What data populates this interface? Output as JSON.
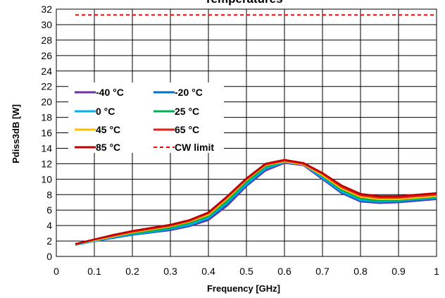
{
  "chart_data": {
    "type": "line",
    "title": "Temperatures",
    "xlabel": "Frequency [GHz]",
    "ylabel": "Pdiss3dB [W]",
    "xlim": [
      0,
      1
    ],
    "ylim": [
      0,
      32
    ],
    "x_ticks": [
      "0",
      "0.1",
      "0.2",
      "0.3",
      "0.4",
      "0.5",
      "0.6",
      "0.7",
      "0.8",
      "0.9",
      "1"
    ],
    "y_ticks": [
      "0",
      "2",
      "4",
      "6",
      "8",
      "10",
      "12",
      "14",
      "16",
      "18",
      "20",
      "22",
      "24",
      "26",
      "28",
      "30",
      "32"
    ],
    "grid": true,
    "legend_position": "upper-left",
    "x": [
      0.05,
      0.1,
      0.15,
      0.2,
      0.25,
      0.3,
      0.35,
      0.4,
      0.45,
      0.5,
      0.55,
      0.6,
      0.65,
      0.7,
      0.75,
      0.8,
      0.85,
      0.9,
      0.95,
      1.0
    ],
    "series": [
      {
        "name": "-40 °C",
        "color": "#7030a0",
        "dash": false,
        "values": [
          1.5,
          2.0,
          2.4,
          2.8,
          3.1,
          3.4,
          3.9,
          4.7,
          6.6,
          9.1,
          11.1,
          12.1,
          11.8,
          10.0,
          8.2,
          7.1,
          6.9,
          7.0,
          7.2,
          7.4
        ]
      },
      {
        "name": "-20 °C",
        "color": "#0070c0",
        "dash": false,
        "values": [
          1.5,
          2.0,
          2.4,
          2.8,
          3.1,
          3.5,
          4.0,
          4.9,
          6.8,
          9.2,
          11.3,
          12.2,
          11.9,
          10.1,
          8.3,
          7.2,
          7.0,
          7.1,
          7.3,
          7.5
        ]
      },
      {
        "name": "0 °C",
        "color": "#00b0f0",
        "dash": false,
        "values": [
          1.5,
          2.0,
          2.5,
          2.9,
          3.2,
          3.6,
          4.1,
          5.0,
          7.0,
          9.4,
          11.4,
          12.2,
          11.9,
          10.2,
          8.4,
          7.3,
          7.1,
          7.2,
          7.4,
          7.6
        ]
      },
      {
        "name": "25 °C",
        "color": "#00b050",
        "dash": false,
        "values": [
          1.6,
          2.1,
          2.6,
          3.0,
          3.3,
          3.7,
          4.3,
          5.2,
          7.2,
          9.6,
          11.6,
          12.3,
          12.0,
          10.4,
          8.6,
          7.5,
          7.2,
          7.3,
          7.5,
          7.7
        ]
      },
      {
        "name": "45 °C",
        "color": "#ffc000",
        "dash": false,
        "values": [
          1.6,
          2.1,
          2.6,
          3.1,
          3.5,
          3.9,
          4.5,
          5.4,
          7.5,
          9.9,
          11.8,
          12.3,
          11.9,
          10.5,
          8.8,
          7.7,
          7.4,
          7.4,
          7.6,
          7.8
        ]
      },
      {
        "name": "65 °C",
        "color": "#e0201b",
        "dash": false,
        "values": [
          1.6,
          2.2,
          2.7,
          3.2,
          3.6,
          4.0,
          4.6,
          5.6,
          7.7,
          10.0,
          11.9,
          12.4,
          12.0,
          10.7,
          9.0,
          7.9,
          7.6,
          7.6,
          7.8,
          8.0
        ]
      },
      {
        "name": "85 °C",
        "color": "#c00000",
        "dash": false,
        "values": [
          1.6,
          2.2,
          2.8,
          3.3,
          3.7,
          4.1,
          4.7,
          5.7,
          7.8,
          10.1,
          12.0,
          12.5,
          12.1,
          10.8,
          9.2,
          8.1,
          7.8,
          7.8,
          8.0,
          8.2
        ]
      },
      {
        "name": "CW limit",
        "color": "#ff0000",
        "dash": true,
        "values": [
          31.25,
          31.25,
          31.25,
          31.25,
          31.25,
          31.25,
          31.25,
          31.25,
          31.25,
          31.25,
          31.25,
          31.25,
          31.25,
          31.25,
          31.25,
          31.25,
          31.25,
          31.25,
          31.25,
          31.25
        ]
      }
    ]
  }
}
